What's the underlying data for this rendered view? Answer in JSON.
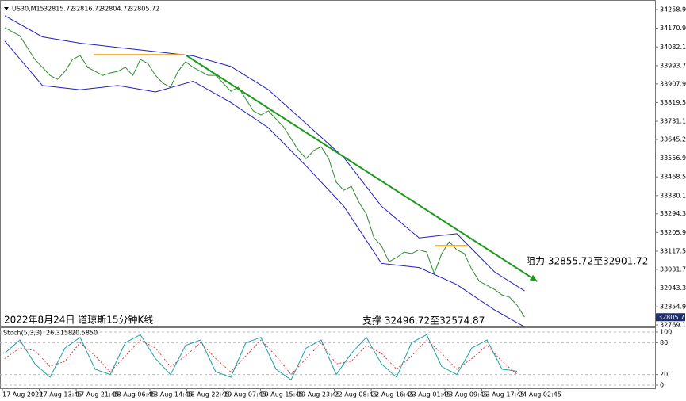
{
  "chart_data": [
    {
      "type": "line",
      "ylim": [
        32758,
        34289
      ],
      "yticks": [
        {
          "value": 34258.9,
          "label": "34258.90"
        },
        34170.95,
        {
          "value": 34082.1,
          "label": "34082.10"
        },
        {
          "value": 33993.7,
          "label": "33993.70"
        },
        {
          "value": 33907.9,
          "label": "33907.90"
        },
        {
          "value": 33819.5,
          "label": "33819.50"
        },
        {
          "value": 33731.1,
          "label": "33731.10"
        },
        {
          "value": 33645.2,
          "label": "33645.20"
        },
        {
          "value": 33556.9,
          "label": "33556.90"
        },
        {
          "value": 33468.5,
          "label": "33468.50"
        },
        {
          "value": 33380.1,
          "label": "33380.10"
        },
        {
          "value": 33294.3,
          "label": "33294.30"
        },
        {
          "value": 33205.9,
          "label": "33205.90"
        },
        {
          "value": 33117.5,
          "label": "33117.50"
        },
        {
          "value": 33031.7,
          "label": "33031.70"
        },
        {
          "value": 32943.3,
          "label": "32943.30"
        },
        {
          "value": 32854.9,
          "label": "32854.90"
        },
        {
          "value": 32769.1,
          "label": "32769.10"
        }
      ],
      "header_values": [
        32815.72,
        32816.72,
        32804.72,
        32805.72
      ],
      "last_price": 32805.72,
      "series": [
        {
          "name": "US30,M15",
          "color": "#2f8a2f",
          "values": [
            34173,
            34154,
            34135,
            34079,
            34023,
            33986,
            33948,
            33929,
            33967,
            34023,
            34042,
            33986,
            33967,
            33948,
            33959,
            33967,
            33986,
            33948,
            34023,
            34004,
            33948,
            33911,
            33892,
            33967,
            34012,
            33986,
            33967,
            33948,
            33948,
            33911,
            33873,
            33892,
            33836,
            33780,
            33761,
            33780,
            33742,
            33705,
            33649,
            33593,
            33555,
            33593,
            33611,
            33555,
            33443,
            33405,
            33424,
            33349,
            33293,
            33181,
            33143,
            33068,
            33087,
            33113,
            33106,
            33124,
            33113,
            33012,
            33106,
            33162,
            33124,
            33106,
            33031,
            32975,
            32956,
            32937,
            32911,
            32900,
            32862,
            32806
          ]
        },
        {
          "color": "#1f1fbf",
          "x": [
            0,
            5,
            10,
            15,
            20,
            25,
            30,
            35,
            40,
            45,
            50,
            55,
            60,
            65,
            69
          ],
          "values": [
            34230,
            34130,
            34100,
            34080,
            34060,
            34040,
            33990,
            33880,
            33720,
            33560,
            33330,
            33180,
            33200,
            33020,
            32930
          ]
        },
        {
          "color": "#1f1fbf",
          "x": [
            0,
            5,
            10,
            15,
            20,
            25,
            30,
            35,
            40,
            45,
            50,
            55,
            60,
            65,
            69
          ],
          "values": [
            34110,
            33900,
            33880,
            33900,
            33870,
            33920,
            33820,
            33700,
            33520,
            33330,
            33060,
            33040,
            32960,
            32840,
            32760
          ]
        }
      ],
      "drawings": [
        {
          "color": "#1a9a1a",
          "x": [
            24.1,
            70.7
          ],
          "values": [
            34042,
            32975
          ]
        },
        {
          "color": "#f5a623",
          "x": [
            11.8,
            23.6
          ],
          "values": [
            34045,
            34045
          ]
        },
        {
          "color": "#f5a623",
          "x": [
            57.1,
            61.5
          ],
          "values": [
            33143,
            33143
          ]
        }
      ],
      "annotations": [
        "阻力 32855.72至32901.72",
        "支撑 32496.72至32574.87",
        "2022年8月24日 道琼斯15分钟K线"
      ]
    },
    {
      "type": "line",
      "title": "Stoch(5,3,3)",
      "header_values": [
        26.3158,
        20.585
      ],
      "value_labels": [
        "26.3158",
        "20.5850"
      ],
      "ylim": [
        0,
        100
      ],
      "yticks": [
        100,
        80,
        20,
        0
      ],
      "categories": [
        "17 Aug 2022",
        "17 Aug 13:45",
        "17 Aug 21:45",
        "18 Aug 06:45",
        "18 Aug 14:45",
        "18 Aug 22:45",
        "19 Aug 07:45",
        "19 Aug 15:45",
        "19 Aug 23:45",
        "22 Aug 08:45",
        "22 Aug 16:45",
        "23 Aug 01:45",
        "23 Aug 09:45",
        "23 Aug 17:45",
        "24 Aug 02:45"
      ],
      "series": [
        {
          "color": "#1aa0a0",
          "x": [
            0,
            2,
            4,
            6,
            8,
            10,
            12,
            14,
            16,
            18,
            20,
            22,
            24,
            26,
            28,
            30,
            32,
            34,
            36,
            38,
            40,
            42,
            44,
            46,
            48,
            50,
            52,
            54,
            56,
            58,
            60,
            62,
            64,
            66,
            68
          ],
          "values": [
            60,
            85,
            40,
            15,
            70,
            90,
            30,
            20,
            80,
            95,
            50,
            20,
            75,
            85,
            25,
            15,
            80,
            90,
            30,
            10,
            70,
            85,
            20,
            60,
            90,
            40,
            15,
            80,
            95,
            35,
            20,
            70,
            85,
            30,
            26.3158
          ]
        },
        {
          "color": "#e03c3c",
          "dashed": true,
          "x": [
            0,
            2,
            4,
            6,
            8,
            10,
            12,
            14,
            16,
            18,
            20,
            22,
            24,
            26,
            28,
            30,
            32,
            34,
            36,
            38,
            40,
            42,
            44,
            46,
            48,
            50,
            52,
            54,
            56,
            58,
            60,
            62,
            64,
            66,
            68
          ],
          "values": [
            50,
            70,
            65,
            35,
            45,
            80,
            55,
            25,
            55,
            85,
            70,
            35,
            55,
            80,
            50,
            25,
            55,
            85,
            55,
            20,
            50,
            80,
            40,
            45,
            75,
            60,
            30,
            55,
            85,
            60,
            30,
            50,
            75,
            45,
            20.585
          ]
        }
      ]
    }
  ]
}
